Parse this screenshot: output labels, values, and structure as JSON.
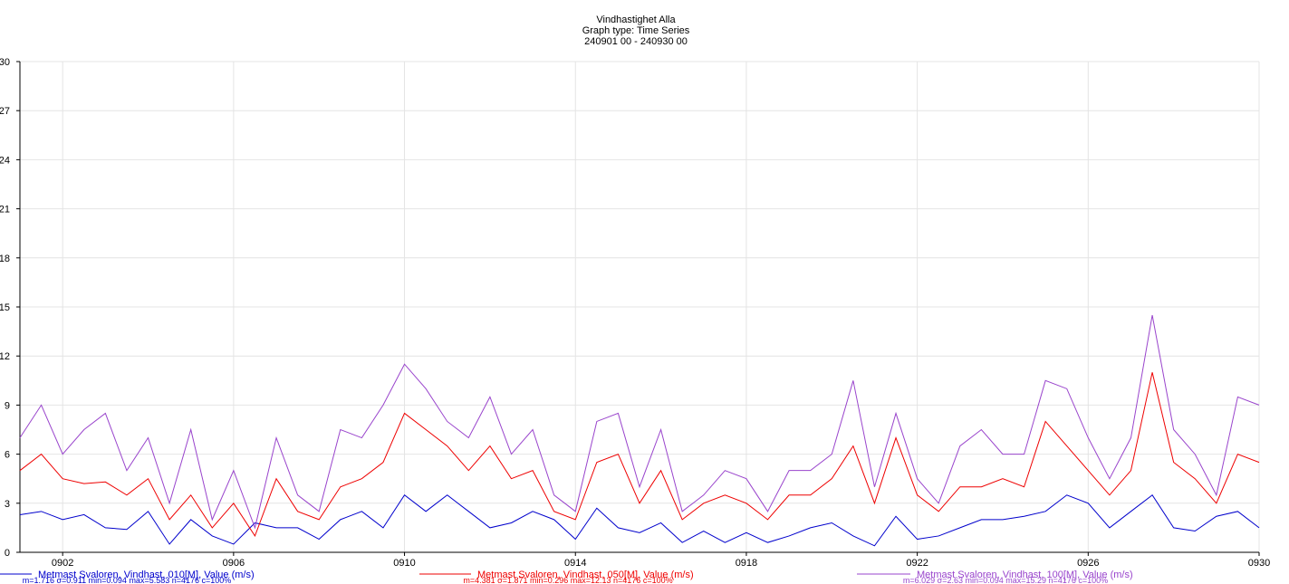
{
  "chart_data": {
    "type": "line",
    "title": "Vindhastighet Alla",
    "subtitle": "Graph type: Time Series",
    "period": "240901 00 - 240930 00",
    "x": [
      1,
      1.5,
      2,
      2.5,
      3,
      3.5,
      4,
      4.5,
      5,
      5.5,
      6,
      6.5,
      7,
      7.5,
      8,
      8.5,
      9,
      9.5,
      10,
      10.5,
      11,
      11.5,
      12,
      12.5,
      13,
      13.5,
      14,
      14.5,
      15,
      15.5,
      16,
      16.5,
      17,
      17.5,
      18,
      18.5,
      19,
      19.5,
      20,
      20.5,
      21,
      21.5,
      22,
      22.5,
      23,
      23.5,
      24,
      24.5,
      25,
      25.5,
      26,
      26.5,
      27,
      27.5,
      28,
      28.5,
      29,
      29.5,
      30
    ],
    "xlim": [
      1,
      30
    ],
    "xticks": [
      {
        "value": 2,
        "label": "0902"
      },
      {
        "value": 6,
        "label": "0906"
      },
      {
        "value": 10,
        "label": "0910"
      },
      {
        "value": 14,
        "label": "0914"
      },
      {
        "value": 18,
        "label": "0918"
      },
      {
        "value": 22,
        "label": "0922"
      },
      {
        "value": 26,
        "label": "0926"
      },
      {
        "value": 30,
        "label": "0930"
      }
    ],
    "ylim": [
      0,
      30
    ],
    "yticks": [
      0,
      3,
      6,
      9,
      12,
      15,
      18,
      21,
      24,
      27,
      30
    ],
    "grid": true,
    "series": [
      {
        "name": "Metmast Svaloren, Vindhast, 010[M], Value (m/s)",
        "stats": "m=1.716 σ=0.911 min=0.094 max=5.583 n=4176 c=100%",
        "color": "#0000cc",
        "values": [
          2.3,
          2.5,
          2.0,
          2.3,
          1.5,
          1.4,
          2.5,
          0.5,
          2.0,
          1.0,
          0.5,
          1.8,
          1.5,
          1.5,
          0.8,
          2.0,
          2.5,
          1.5,
          3.5,
          2.5,
          3.5,
          2.5,
          1.5,
          1.8,
          2.5,
          2.0,
          0.8,
          2.7,
          1.5,
          1.2,
          1.8,
          0.6,
          1.3,
          0.6,
          1.2,
          0.6,
          1.0,
          1.5,
          1.8,
          1.0,
          0.4,
          2.2,
          0.8,
          1.0,
          1.5,
          2.0,
          2.0,
          2.2,
          2.5,
          3.5,
          3.0,
          1.5,
          2.5,
          3.5,
          1.5,
          1.3,
          2.2,
          2.5,
          1.5
        ]
      },
      {
        "name": "Metmast Svaloren, Vindhast, 050[M], Value (m/s)",
        "stats": "m=4.381 σ=1.871 min=0.296 max=12.13 n=4176 c=100%",
        "color": "#ee0000",
        "values": [
          5.0,
          6.0,
          4.5,
          4.2,
          4.3,
          3.5,
          4.5,
          2.0,
          3.5,
          1.5,
          3.0,
          1.0,
          4.5,
          2.5,
          2.0,
          4.0,
          4.5,
          5.5,
          8.5,
          7.5,
          6.5,
          5.0,
          6.5,
          4.5,
          5.0,
          2.5,
          2.0,
          5.5,
          6.0,
          3.0,
          5.0,
          2.0,
          3.0,
          3.5,
          3.0,
          2.0,
          3.5,
          3.5,
          4.5,
          6.5,
          3.0,
          7.0,
          3.5,
          2.5,
          4.0,
          4.0,
          4.5,
          4.0,
          8.0,
          6.5,
          5.0,
          3.5,
          5.0,
          11.0,
          5.5,
          4.5,
          3.0,
          6.0,
          5.5
        ]
      },
      {
        "name": "Metmast Svaloren, Vindhast, 100[M], Value (m/s)",
        "stats": "m=6.029 σ=2.63 min=0.094 max=15.29 n=4176 c=100%",
        "color": "#9944cc",
        "values": [
          7.0,
          9.0,
          6.0,
          7.5,
          8.5,
          5.0,
          7.0,
          3.0,
          7.5,
          2.0,
          5.0,
          1.5,
          7.0,
          3.5,
          2.5,
          7.5,
          7.0,
          9.0,
          11.5,
          10.0,
          8.0,
          7.0,
          9.5,
          6.0,
          7.5,
          3.5,
          2.5,
          8.0,
          8.5,
          4.0,
          7.5,
          2.5,
          3.5,
          5.0,
          4.5,
          2.5,
          5.0,
          5.0,
          6.0,
          10.5,
          4.0,
          8.5,
          4.5,
          3.0,
          6.5,
          7.5,
          6.0,
          6.0,
          10.5,
          10.0,
          7.0,
          4.5,
          7.0,
          14.5,
          7.5,
          6.0,
          3.5,
          9.5,
          9.0
        ]
      }
    ]
  }
}
